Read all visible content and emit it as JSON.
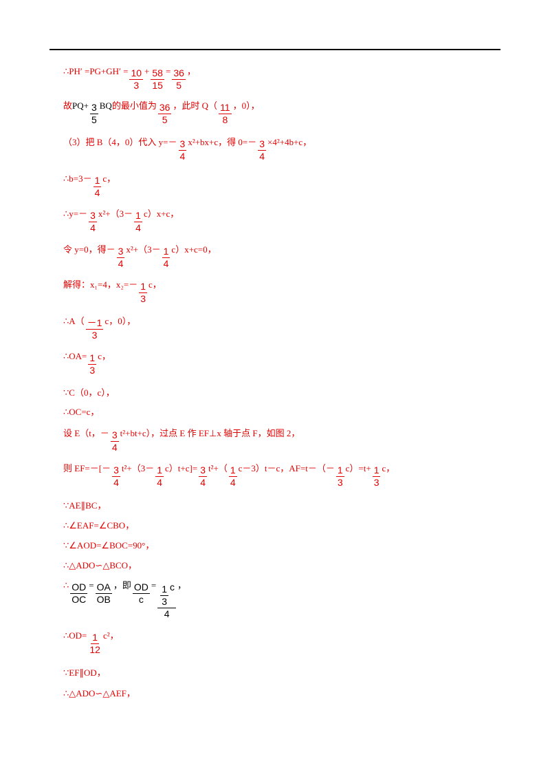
{
  "lines": [
    [
      {
        "t": "∴PH′ =PG+GH′ ="
      },
      {
        "num": "10",
        "den": "3"
      },
      {
        "t": "+"
      },
      {
        "num": "58",
        "den": "15"
      },
      {
        "t": "="
      },
      {
        "num": "36",
        "den": "5"
      },
      {
        "t": "，"
      }
    ],
    [
      {
        "t": "故"
      },
      {
        "t": "PQ+",
        "color": "#000000"
      },
      {
        "num": "3",
        "den": "5",
        "color": "#000000"
      },
      {
        "t": "BQ",
        "color": "#000000"
      },
      {
        "t": "的最小值为"
      },
      {
        "num": "36",
        "den": "5"
      },
      {
        "t": "，此时 Q（"
      },
      {
        "num": "11",
        "den": "8"
      },
      {
        "t": "，0），"
      }
    ],
    [
      {
        "t": "（3）把 B（4，0）代入 y=－"
      },
      {
        "num": "3",
        "den": "4"
      },
      {
        "t": "x²+bx+c，得 0=－"
      },
      {
        "num": "3",
        "den": "4"
      },
      {
        "t": "×4²+4b+c，"
      }
    ],
    [
      {
        "t": "∴b=3－"
      },
      {
        "num": "1",
        "den": "4"
      },
      {
        "t": "c，"
      }
    ],
    [
      {
        "t": "∴y=－"
      },
      {
        "num": "3",
        "den": "4"
      },
      {
        "t": "x²+（3－"
      },
      {
        "num": "1",
        "den": "4"
      },
      {
        "t": "c）x+c，"
      }
    ],
    [
      {
        "t": "令 y=0，得－"
      },
      {
        "num": "3",
        "den": "4"
      },
      {
        "t": "x²+（3－"
      },
      {
        "num": "1",
        "den": "4"
      },
      {
        "t": "c）x+c=0，"
      }
    ],
    [
      {
        "t": "解得：x₁=4，x₂=－"
      },
      {
        "num": "1",
        "den": "3"
      },
      {
        "t": "c，"
      }
    ],
    [
      {
        "t": "∴A（"
      },
      {
        "num": "－1",
        "den": "3"
      },
      {
        "t": "c，0），"
      }
    ],
    [
      {
        "t": "∴OA="
      },
      {
        "num": "1",
        "den": "3"
      },
      {
        "t": "c，"
      }
    ],
    [
      {
        "t": "∵C（0，c），"
      }
    ],
    [
      {
        "t": "∴OC=c，"
      }
    ],
    [
      {
        "t": "设 E（t，－"
      },
      {
        "num": "3",
        "den": "4"
      },
      {
        "t": "t²+bt+c），过点 E 作 EF⊥x 轴于点 F，如图 2，"
      }
    ],
    [
      {
        "t": "则 EF=－[－"
      },
      {
        "num": "3",
        "den": "4"
      },
      {
        "t": "t²+（3－"
      },
      {
        "num": "1",
        "den": "4"
      },
      {
        "t": "c）t+c]="
      },
      {
        "num": "3",
        "den": "4"
      },
      {
        "t": "t²+（"
      },
      {
        "num": "1",
        "den": "4"
      },
      {
        "t": "c－3）t－c，AF=t－（－"
      },
      {
        "num": "1",
        "den": "3"
      },
      {
        "t": "c）=t+"
      },
      {
        "num": "1",
        "den": "3"
      },
      {
        "t": "c，"
      }
    ],
    [
      {
        "t": "∵AE∥BC，"
      }
    ],
    [
      {
        "t": "∴∠EAF=∠CBO，"
      }
    ],
    [
      {
        "t": "∵∠AOD=∠BOC=90°，"
      }
    ],
    [
      {
        "t": "∴△ADO∽△BCO，"
      }
    ],
    [
      {
        "t": "∴"
      },
      {
        "num": "OD",
        "den": "OC",
        "color": "#000000"
      },
      {
        "t": "=",
        "color": "#000000"
      },
      {
        "num": "OA",
        "den": "OB",
        "color": "#000000"
      },
      {
        "t": "，即",
        "color": "#000000"
      },
      {
        "num": "OD",
        "den": "c",
        "color": "#000000"
      },
      {
        "t": "=",
        "color": "#000000"
      },
      {
        "num": [
          {
            "num": "1",
            "den": "3"
          },
          {
            "t": "c"
          }
        ],
        "den": "4",
        "color": "#000000"
      },
      {
        "t": "，",
        "color": "#000000"
      }
    ],
    [
      {
        "t": "∴OD="
      },
      {
        "num": "1",
        "den": "12"
      },
      {
        "t": "c²，"
      }
    ],
    [
      {
        "t": "∵EF∥OD，"
      }
    ],
    [
      {
        "t": "∴△ADO∽△AEF，"
      }
    ]
  ]
}
